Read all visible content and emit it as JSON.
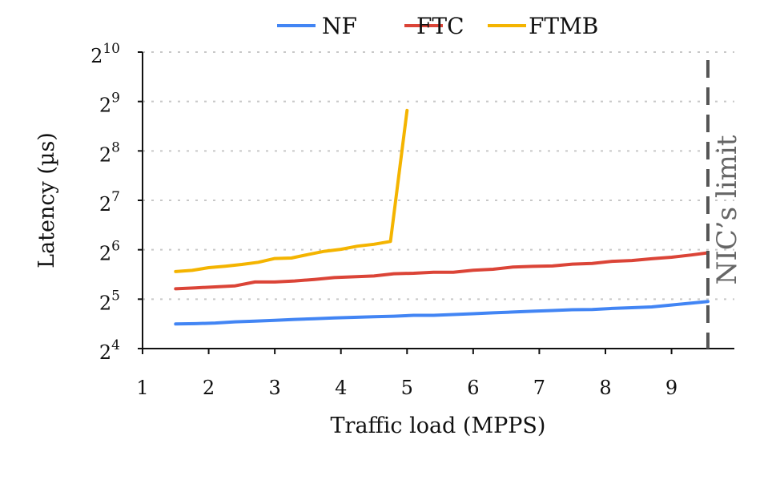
{
  "chart_data": {
    "type": "line",
    "xlabel": "Traffic load (MPPS)",
    "ylabel": "Latency (µs)",
    "xlim": [
      1,
      9.95
    ],
    "x_ticks": [
      1,
      2,
      3,
      4,
      5,
      6,
      7,
      8,
      9
    ],
    "ylim_log2": [
      4,
      10
    ],
    "y_scale": "log2",
    "y_ticks": [
      {
        "base": "2",
        "exp": "4",
        "value": 16
      },
      {
        "base": "2",
        "exp": "5",
        "value": 32
      },
      {
        "base": "2",
        "exp": "6",
        "value": 64
      },
      {
        "base": "2",
        "exp": "7",
        "value": 128
      },
      {
        "base": "2",
        "exp": "8",
        "value": 256
      },
      {
        "base": "2",
        "exp": "9",
        "value": 512
      },
      {
        "base": "2",
        "exp": "10",
        "value": 1024
      }
    ],
    "grid": "horizontal dotted",
    "legend_position": "top",
    "series": [
      {
        "name": "NF",
        "color": "#4285f4",
        "x": [
          1.5,
          1.8,
          2.1,
          2.4,
          2.7,
          3.0,
          3.3,
          3.6,
          3.9,
          4.2,
          4.5,
          4.8,
          5.1,
          5.4,
          5.7,
          6.0,
          6.3,
          6.6,
          6.9,
          7.2,
          7.5,
          7.8,
          8.1,
          8.4,
          8.7,
          9.0,
          9.3,
          9.55
        ],
        "y": [
          22.6,
          22.7,
          22.9,
          23.3,
          23.5,
          23.8,
          24.1,
          24.3,
          24.6,
          24.8,
          25.0,
          25.2,
          25.5,
          25.5,
          25.8,
          26.1,
          26.4,
          26.7,
          27.0,
          27.3,
          27.6,
          27.7,
          28.1,
          28.4,
          28.7,
          29.5,
          30.3,
          31.0
        ]
      },
      {
        "name": "FTC",
        "color": "#db4437",
        "x": [
          1.5,
          1.8,
          2.1,
          2.4,
          2.7,
          3.0,
          3.3,
          3.6,
          3.9,
          4.2,
          4.5,
          4.8,
          5.1,
          5.4,
          5.7,
          6.0,
          6.3,
          6.6,
          6.9,
          7.2,
          7.5,
          7.8,
          8.1,
          8.4,
          8.7,
          9.0,
          9.3,
          9.55
        ],
        "y": [
          37.0,
          37.5,
          38.0,
          38.6,
          40.7,
          40.7,
          41.3,
          42.2,
          43.3,
          43.8,
          44.3,
          45.7,
          46.0,
          46.7,
          46.7,
          48.0,
          48.7,
          50.2,
          50.7,
          51.0,
          52.3,
          52.8,
          54.4,
          55.0,
          56.4,
          57.6,
          59.5,
          61.3
        ]
      },
      {
        "name": "FTMB",
        "color": "#f4b400",
        "x": [
          1.5,
          1.75,
          2.0,
          2.25,
          2.5,
          2.75,
          3.0,
          3.25,
          3.5,
          3.75,
          4.0,
          4.25,
          4.5,
          4.75,
          5.0
        ],
        "y": [
          47.1,
          47.9,
          49.8,
          50.8,
          52.1,
          53.7,
          56.6,
          57.0,
          59.8,
          62.6,
          64.4,
          67.3,
          69.1,
          71.9,
          452
        ]
      }
    ],
    "annotations": [
      {
        "text": "NIC’s limit",
        "x": 9.55,
        "style": "vertical dashed line"
      }
    ]
  }
}
